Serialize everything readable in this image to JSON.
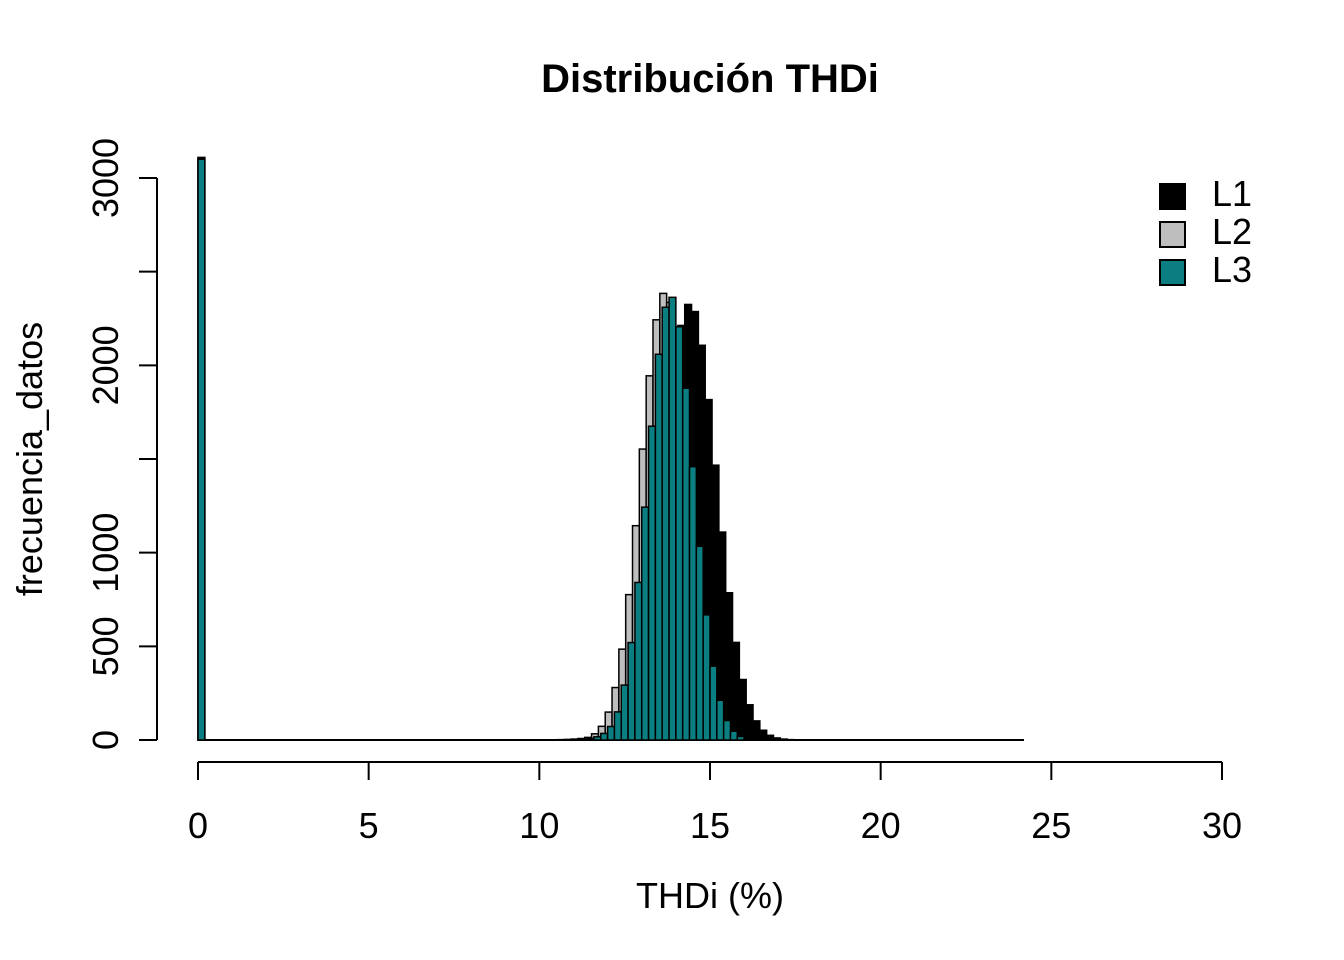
{
  "chart_data": {
    "type": "bar",
    "subtype": "overlaid-histograms",
    "title": "Distribución THDi",
    "xlabel": "THDi (%)",
    "ylabel": "frecuencia_datos",
    "xlim": [
      0,
      30
    ],
    "ylim": [
      0,
      3100
    ],
    "grid": "off",
    "legend_position": "top-right",
    "x_ticks": [
      0,
      5,
      10,
      15,
      20,
      25,
      30
    ],
    "y_ticks": [
      0,
      500,
      1000,
      1500,
      2000,
      2500,
      3000
    ],
    "y_tick_labels_shown": [
      0,
      500,
      1000,
      2000,
      3000
    ],
    "bin_width": 0.2,
    "bell_start": 10.6,
    "baseline_range": [
      0,
      24.2
    ],
    "series": [
      {
        "name": "L1",
        "color": "#000000",
        "offset": 0.06,
        "spike_x": 0,
        "spike_count": 3110,
        "counts": [
          0,
          0,
          1,
          1,
          3,
          6,
          14,
          33,
          70,
          138,
          245,
          410,
          640,
          940,
          1285,
          1647,
          1973,
          2213,
          2325,
          2287,
          2107,
          1817,
          1467,
          1110,
          786,
          521,
          323,
          188,
          102,
          52,
          25,
          11,
          5,
          2,
          1,
          0
        ]
      },
      {
        "name": "L2",
        "color": "#BEBEBE",
        "offset": -0.07,
        "spike_x": 0,
        "spike_count": 3105,
        "counts": [
          2,
          3,
          5,
          8,
          14,
          33,
          73,
          149,
          280,
          485,
          776,
          1144,
          1553,
          1944,
          2243,
          2384,
          2336,
          2109,
          1755,
          1347,
          952,
          620,
          372,
          206,
          105,
          49,
          21,
          9,
          3,
          1,
          0,
          0,
          0,
          0,
          0,
          0
        ]
      },
      {
        "name": "L3",
        "color": "#0A7E80",
        "offset": 0,
        "spike_x": 0,
        "spike_count": 3100,
        "counts": [
          1,
          2,
          3,
          5,
          8,
          17,
          35,
          72,
          150,
          293,
          520,
          841,
          1243,
          1675,
          2059,
          2310,
          2363,
          2206,
          1878,
          1459,
          1034,
          668,
          394,
          212,
          104,
          47,
          19,
          7,
          2,
          1,
          0,
          0,
          0,
          0,
          0,
          0
        ]
      }
    ]
  },
  "legend": {
    "items": [
      {
        "label": "L1",
        "color": "#000000"
      },
      {
        "label": "L2",
        "color": "#BEBEBE"
      },
      {
        "label": "L3",
        "color": "#0A7E80"
      }
    ]
  }
}
